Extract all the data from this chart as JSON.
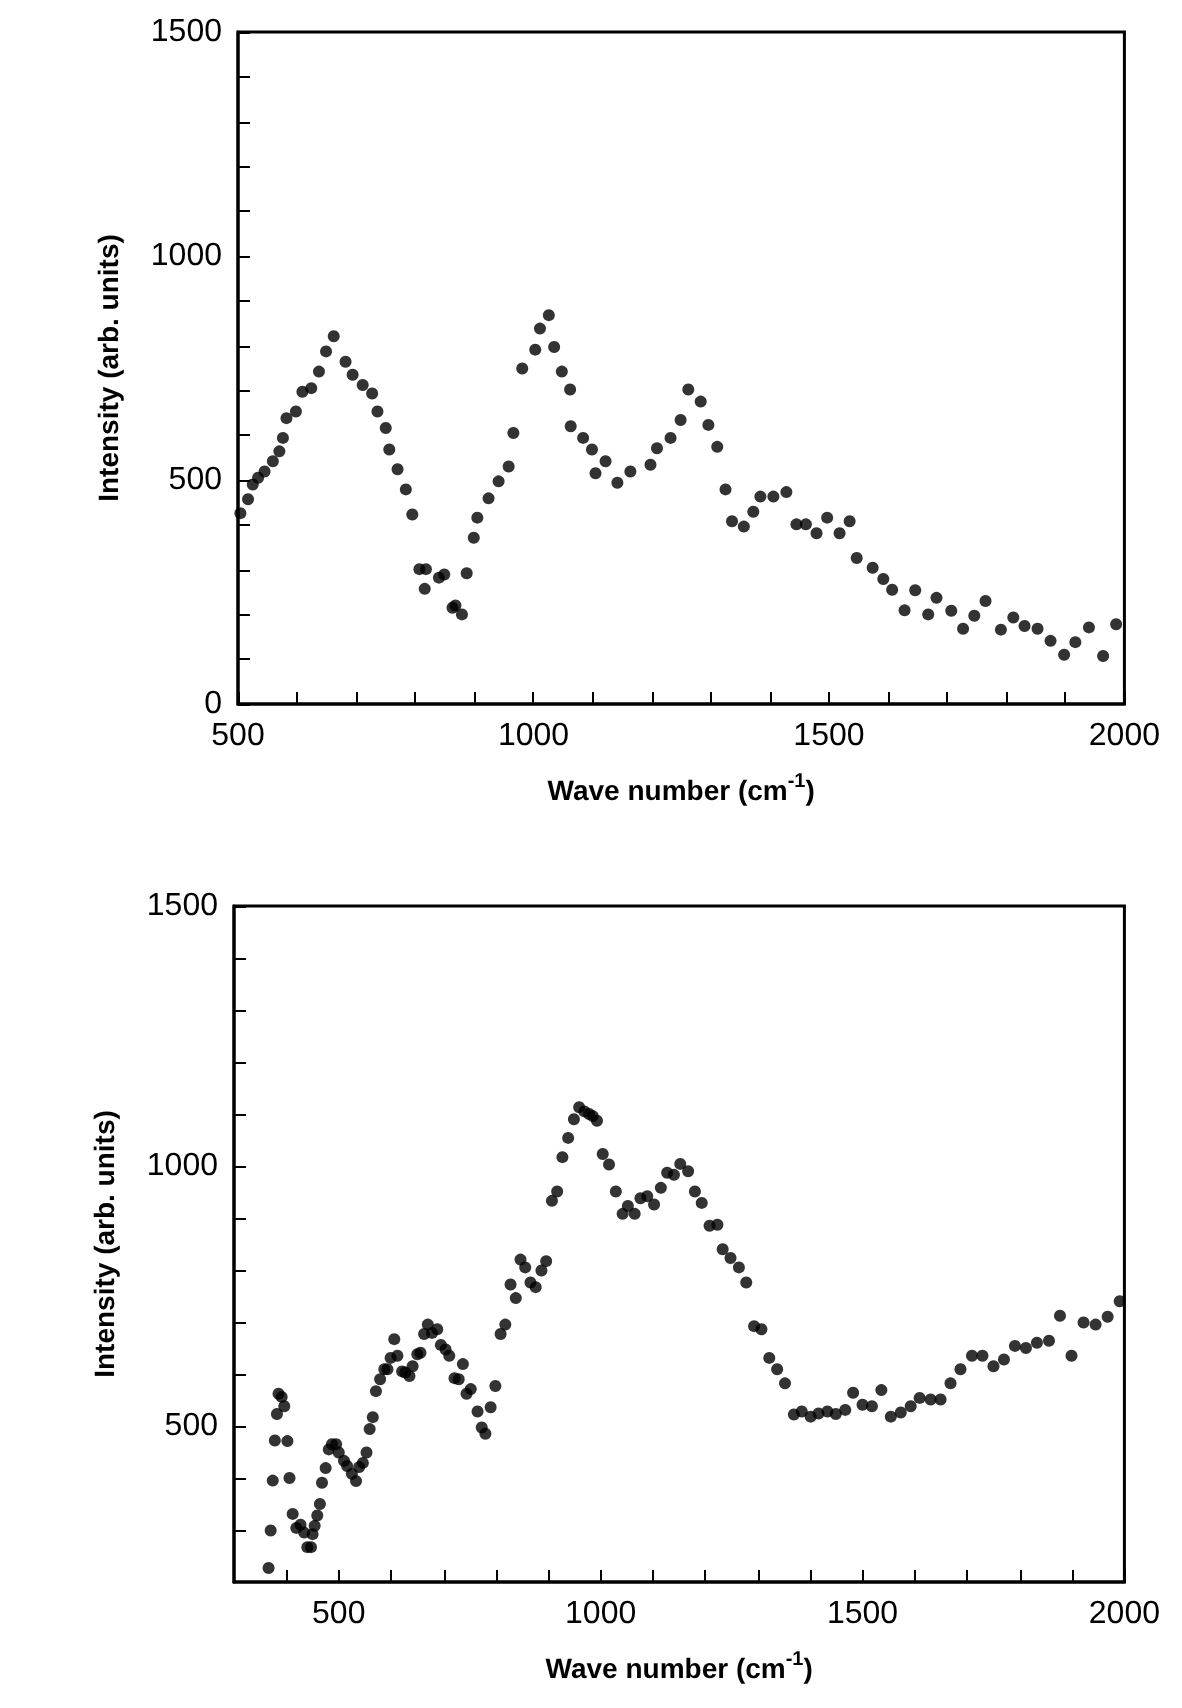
{
  "chart_data": [
    {
      "type": "scatter",
      "xlabel": "Wave number (cm$^{-1}$)",
      "ylabel": "Intensity (arb. units)",
      "marker": "circle",
      "grid": false,
      "xlim": [
        500,
        2000
      ],
      "ylim": [
        0,
        1500
      ],
      "xticks": [
        500,
        {
          "value": 600,
          "label": null
        },
        {
          "value": 700,
          "label": null
        },
        {
          "value": 800,
          "label": null
        },
        {
          "value": 900,
          "label": null
        },
        1000,
        {
          "value": 1100,
          "label": null
        },
        {
          "value": 1200,
          "label": null
        },
        {
          "value": 1300,
          "label": null
        },
        {
          "value": 1400,
          "label": null
        },
        1500,
        {
          "value": 1600,
          "label": null
        },
        {
          "value": 1700,
          "label": null
        },
        {
          "value": 1800,
          "label": null
        },
        {
          "value": 1900,
          "label": null
        },
        2000
      ],
      "yticks": [
        0,
        {
          "value": 100,
          "label": null
        },
        {
          "value": 200,
          "label": null
        },
        {
          "value": 300,
          "label": null
        },
        {
          "value": 400,
          "label": null
        },
        500,
        {
          "value": 600,
          "label": null
        },
        {
          "value": 700,
          "label": null
        },
        {
          "value": 800,
          "label": null
        },
        {
          "value": 900,
          "label": null
        },
        1000,
        {
          "value": 1100,
          "label": null
        },
        {
          "value": 1200,
          "label": null
        },
        {
          "value": 1300,
          "label": null
        },
        {
          "value": 1400,
          "label": null
        },
        1500
      ],
      "series": [
        {
          "color": "#000000",
          "x": [
            504,
            517,
            525,
            534,
            545,
            559,
            570,
            576,
            582,
            598,
            609,
            624,
            637,
            649,
            662,
            682,
            694,
            711,
            727,
            736,
            750,
            756,
            770,
            784,
            795,
            807,
            818,
            816,
            840,
            849,
            863,
            868,
            879,
            887,
            899,
            905,
            924,
            941,
            958,
            966,
            981,
            1003,
            1011,
            1026,
            1035,
            1048,
            1062,
            1063,
            1084,
            1099,
            1105,
            1122,
            1142,
            1164,
            1198,
            1209,
            1232,
            1249,
            1262,
            1283,
            1296,
            1311,
            1325,
            1336,
            1356,
            1372,
            1384,
            1406,
            1428,
            1445,
            1461,
            1479,
            1497,
            1518,
            1535,
            1547,
            1574,
            1592,
            1607,
            1628,
            1646,
            1668,
            1682,
            1707,
            1727,
            1746,
            1765,
            1791,
            1812,
            1831,
            1853,
            1875,
            1898,
            1917,
            1940,
            1964,
            1986
          ],
          "values": [
            426,
            457,
            490,
            505,
            519,
            542,
            564,
            594,
            638,
            653,
            697,
            705,
            742,
            787,
            821,
            764,
            735,
            712,
            693,
            653,
            616,
            568,
            524,
            479,
            423,
            301,
            301,
            257,
            282,
            289,
            215,
            220,
            200,
            292,
            371,
            416,
            459,
            497,
            530,
            605,
            749,
            791,
            838,
            868,
            797,
            742,
            702,
            620,
            594,
            568,
            515,
            542,
            494,
            519,
            534,
            571,
            594,
            634,
            702,
            675,
            623,
            574,
            479,
            408,
            396,
            429,
            463,
            463,
            473,
            401,
            401,
            381,
            416,
            381,
            408,
            326,
            304,
            279,
            255,
            209,
            254,
            200,
            237,
            208,
            168,
            197,
            230,
            166,
            193,
            174,
            168,
            141,
            110,
            138,
            171,
            107,
            178
          ]
        }
      ]
    },
    {
      "type": "scatter",
      "xlabel": "Wave number (cm$^{-1}$)",
      "ylabel": "Intensity (arb. units)",
      "marker": "circle",
      "grid": false,
      "xlim": [
        300,
        2000
      ],
      "ylim": [
        200,
        1500
      ],
      "xticks": [
        {
          "value": 400,
          "label": null
        },
        500,
        {
          "value": 600,
          "label": null
        },
        {
          "value": 700,
          "label": null
        },
        {
          "value": 800,
          "label": null
        },
        {
          "value": 900,
          "label": null
        },
        1000,
        {
          "value": 1100,
          "label": null
        },
        {
          "value": 1200,
          "label": null
        },
        {
          "value": 1300,
          "label": null
        },
        {
          "value": 1400,
          "label": null
        },
        1500,
        {
          "value": 1600,
          "label": null
        },
        {
          "value": 1700,
          "label": null
        },
        {
          "value": 1800,
          "label": null
        },
        {
          "value": 1900,
          "label": null
        },
        2000
      ],
      "yticks": [
        {
          "value": 300,
          "label": null
        },
        {
          "value": 400,
          "label": null
        },
        500,
        {
          "value": 600,
          "label": null
        },
        {
          "value": 700,
          "label": null
        },
        {
          "value": 800,
          "label": null
        },
        {
          "value": 900,
          "label": null
        },
        1000,
        {
          "value": 1100,
          "label": null
        },
        {
          "value": 1200,
          "label": null
        },
        {
          "value": 1300,
          "label": null
        },
        {
          "value": 1400,
          "label": null
        },
        1500
      ],
      "series": [
        {
          "color": "#000000",
          "x": [
            366,
            370,
            374,
            378,
            382,
            385,
            391,
            396,
            402,
            406,
            412,
            419,
            427,
            434,
            440,
            447,
            450,
            454,
            459,
            464,
            468,
            475,
            481,
            487,
            495,
            500,
            510,
            516,
            525,
            533,
            539,
            546,
            553,
            559,
            565,
            571,
            579,
            587,
            593,
            599,
            606,
            612,
            621,
            627,
            635,
            641,
            650,
            656,
            663,
            670,
            678,
            688,
            695,
            704,
            711,
            721,
            729,
            737,
            744,
            752,
            765,
            773,
            780,
            790,
            799,
            809,
            818,
            828,
            838,
            847,
            856,
            866,
            876,
            887,
            896,
            907,
            917,
            927,
            938,
            949,
            959,
            969,
            978,
            985,
            993,
            1004,
            1016,
            1029,
            1042,
            1052,
            1065,
            1076,
            1089,
            1102,
            1115,
            1127,
            1140,
            1152,
            1167,
            1180,
            1193,
            1208,
            1223,
            1233,
            1248,
            1264,
            1278,
            1293,
            1307,
            1322,
            1337,
            1352,
            1369,
            1384,
            1401,
            1416,
            1433,
            1449,
            1467,
            1482,
            1500,
            1518,
            1536,
            1554,
            1573,
            1592,
            1609,
            1630,
            1649,
            1668,
            1687,
            1709,
            1729,
            1750,
            1770,
            1791,
            1812,
            1833,
            1856,
            1877,
            1899,
            1922,
            1945,
            1968,
            1991
          ],
          "values": [
            227,
            299,
            395,
            472,
            523,
            562,
            556,
            538,
            471,
            400,
            331,
            304,
            310,
            295,
            267,
            267,
            292,
            308,
            328,
            350,
            391,
            419,
            455,
            465,
            465,
            449,
            433,
            423,
            408,
            394,
            421,
            429,
            449,
            494,
            517,
            567,
            590,
            609,
            609,
            631,
            667,
            635,
            605,
            603,
            596,
            615,
            638,
            641,
            677,
            695,
            679,
            686,
            656,
            647,
            635,
            592,
            590,
            619,
            562,
            571,
            528,
            497,
            485,
            536,
            577,
            677,
            695,
            772,
            746,
            820,
            805,
            776,
            767,
            799,
            817,
            933,
            951,
            1017,
            1054,
            1090,
            1113,
            1105,
            1100,
            1096,
            1087,
            1023,
            1003,
            951,
            908,
            923,
            908,
            938,
            942,
            926,
            958,
            987,
            983,
            1004,
            990,
            951,
            929,
            885,
            887,
            840,
            823,
            805,
            776,
            692,
            686,
            631,
            609,
            582,
            522,
            528,
            518,
            524,
            528,
            523,
            531,
            564,
            541,
            538,
            569,
            518,
            526,
            538,
            554,
            551,
            551,
            582,
            609,
            635,
            635,
            615,
            628,
            654,
            650,
            660,
            664,
            712,
            635,
            699,
            695,
            710,
            740
          ]
        }
      ]
    }
  ]
}
